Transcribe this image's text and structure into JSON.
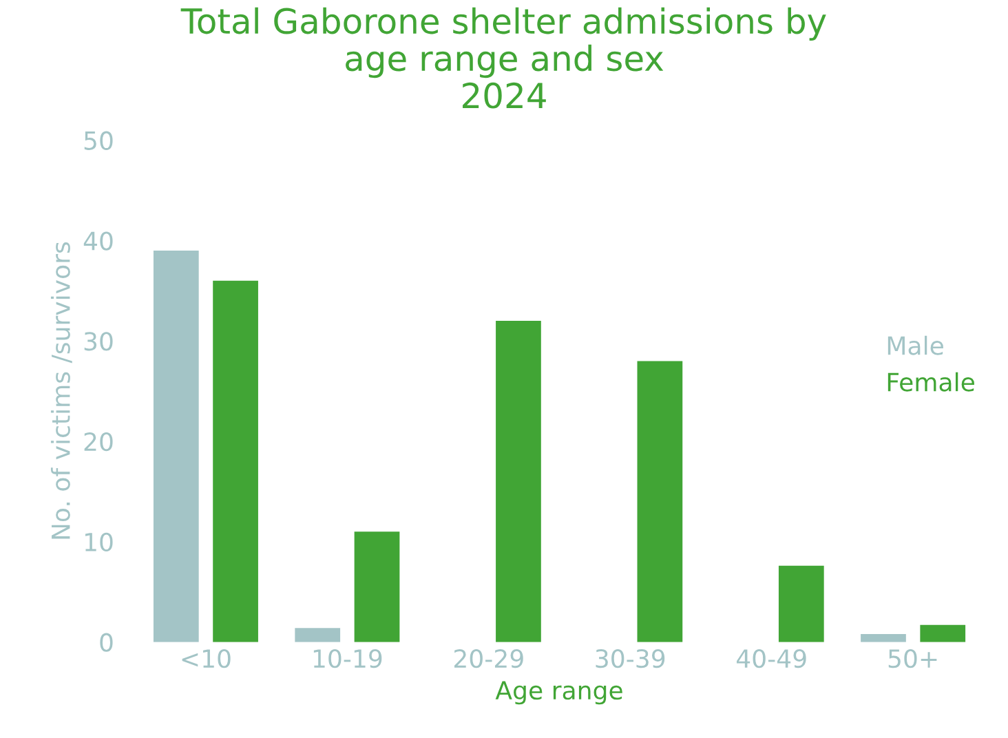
{
  "chart_data": {
    "type": "bar",
    "title": "Total Gaborone shelter admissions by\nage range and sex\n2024",
    "xlabel": "Age range",
    "ylabel": "No. of victims /survivors",
    "categories": [
      "<10",
      "10-19",
      "20-29",
      "30-39",
      "40-49",
      "50+"
    ],
    "series": [
      {
        "name": "Male",
        "color": "#a3c4c6",
        "values": [
          39,
          1.4,
          0,
          0,
          0,
          0.8
        ]
      },
      {
        "name": "Female",
        "color": "#41a535",
        "values": [
          36,
          11,
          32,
          28,
          7.6,
          1.7
        ]
      }
    ],
    "ylim": [
      0,
      50
    ],
    "yticks": [
      0,
      10,
      20,
      30,
      40,
      50
    ],
    "grid": false,
    "legend": "right"
  }
}
